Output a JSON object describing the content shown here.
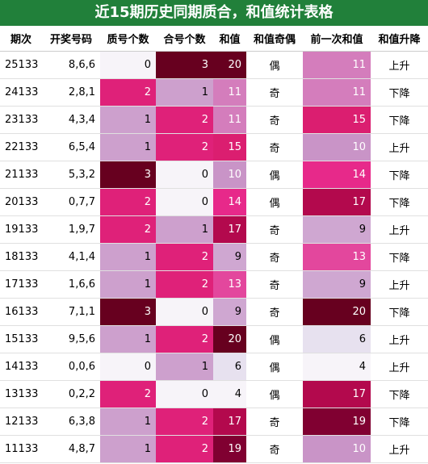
{
  "title": "近15期历史同期质合，和值统计表格",
  "table": {
    "headers": [
      "期次",
      "开奖号码",
      "质号个数",
      "合号个数",
      "和值",
      "和值奇偶",
      "前一次和值",
      "和值升降"
    ],
    "rows": [
      [
        "25133",
        "8,6,6",
        0,
        3,
        20,
        "偶",
        11,
        "上升"
      ],
      [
        "24133",
        "2,8,1",
        2,
        1,
        11,
        "奇",
        11,
        "下降"
      ],
      [
        "23133",
        "4,3,4",
        1,
        2,
        11,
        "奇",
        15,
        "下降"
      ],
      [
        "22133",
        "6,5,4",
        1,
        2,
        15,
        "奇",
        10,
        "上升"
      ],
      [
        "21133",
        "5,3,2",
        3,
        0,
        10,
        "偶",
        14,
        "下降"
      ],
      [
        "20133",
        "0,7,7",
        2,
        0,
        14,
        "偶",
        17,
        "下降"
      ],
      [
        "19133",
        "1,9,7",
        2,
        1,
        17,
        "奇",
        9,
        "上升"
      ],
      [
        "18133",
        "4,1,4",
        1,
        2,
        9,
        "奇",
        13,
        "下降"
      ],
      [
        "17133",
        "1,6,6",
        1,
        2,
        13,
        "奇",
        9,
        "上升"
      ],
      [
        "16133",
        "7,1,1",
        3,
        0,
        9,
        "奇",
        20,
        "下降"
      ],
      [
        "15133",
        "9,5,6",
        1,
        2,
        20,
        "偶",
        6,
        "上升"
      ],
      [
        "14133",
        "0,0,6",
        0,
        1,
        6,
        "偶",
        4,
        "上升"
      ],
      [
        "13133",
        "0,2,2",
        2,
        0,
        4,
        "偶",
        17,
        "下降"
      ],
      [
        "12133",
        "6,3,8",
        1,
        2,
        17,
        "奇",
        19,
        "下降"
      ],
      [
        "11133",
        "4,8,7",
        1,
        2,
        19,
        "奇",
        10,
        "上升"
      ]
    ]
  }
}
